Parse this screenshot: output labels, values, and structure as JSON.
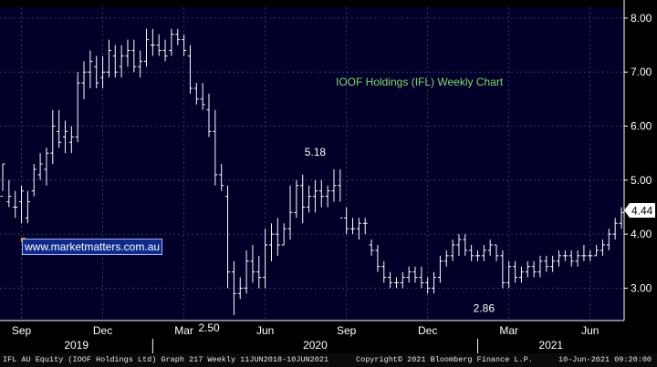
{
  "chart_data": {
    "type": "bar",
    "style": "ohlc-weekly",
    "title": "IOOF Holdings (IFL) Weekly Chart",
    "ylim": [
      2.4,
      8.2
    ],
    "yticks": [
      "3.00",
      "4.00",
      "5.00",
      "6.00",
      "7.00",
      "8.00"
    ],
    "ytick_values": [
      3,
      4,
      5,
      6,
      7,
      8
    ],
    "months": [
      "Sep",
      "Dec",
      "Mar",
      "Jun",
      "Sep",
      "Dec",
      "Mar",
      "Jun"
    ],
    "years": [
      "2019",
      "2020",
      "2021"
    ],
    "last_price": "4.44",
    "annotations": [
      {
        "label": "5.18",
        "x_week": 50,
        "value": 5.18,
        "pos": "above"
      },
      {
        "label": "2.50",
        "x_week": 33,
        "value": 2.5,
        "pos": "below"
      },
      {
        "label": "2.86",
        "x_week": 77,
        "value": 2.86,
        "pos": "below"
      }
    ],
    "weeks": [
      [
        4.7,
        5.3,
        4.8,
        5.3
      ],
      [
        4.6,
        5.0,
        4.5,
        4.7
      ],
      [
        4.5,
        4.8,
        4.3,
        4.5
      ],
      [
        4.6,
        4.9,
        4.2,
        4.8
      ],
      [
        4.3,
        4.8,
        4.2,
        4.6
      ],
      [
        4.8,
        5.3,
        4.7,
        5.2
      ],
      [
        5.1,
        5.5,
        5.0,
        5.3
      ],
      [
        5.2,
        5.6,
        4.9,
        5.5
      ],
      [
        5.5,
        6.3,
        5.3,
        6.0
      ],
      [
        5.9,
        6.3,
        5.6,
        5.7
      ],
      [
        5.8,
        6.1,
        5.5,
        5.9
      ],
      [
        5.7,
        6.0,
        5.5,
        5.8
      ],
      [
        5.8,
        7.0,
        5.7,
        6.8
      ],
      [
        6.8,
        7.2,
        6.5,
        7.0
      ],
      [
        7.0,
        7.4,
        6.7,
        7.2
      ],
      [
        7.1,
        7.3,
        6.7,
        6.8
      ],
      [
        6.9,
        7.3,
        6.7,
        7.0
      ],
      [
        7.0,
        7.6,
        6.9,
        7.4
      ],
      [
        7.3,
        7.5,
        6.9,
        7.0
      ],
      [
        7.1,
        7.5,
        6.9,
        7.3
      ],
      [
        7.3,
        7.6,
        7.1,
        7.4
      ],
      [
        7.4,
        7.6,
        7.0,
        7.1
      ],
      [
        7.1,
        7.4,
        6.9,
        7.2
      ],
      [
        7.2,
        7.8,
        7.1,
        7.6
      ],
      [
        7.5,
        7.8,
        7.3,
        7.5
      ],
      [
        7.5,
        7.7,
        7.3,
        7.4
      ],
      [
        7.4,
        7.6,
        7.2,
        7.3
      ],
      [
        7.4,
        7.8,
        7.3,
        7.7
      ],
      [
        7.7,
        7.8,
        7.5,
        7.6
      ],
      [
        7.6,
        7.7,
        7.3,
        7.4
      ],
      [
        7.3,
        7.5,
        6.6,
        6.7
      ],
      [
        6.7,
        6.8,
        6.4,
        6.5
      ],
      [
        6.5,
        6.8,
        6.3,
        6.4
      ],
      [
        6.3,
        6.6,
        5.8,
        5.9
      ],
      [
        5.9,
        6.3,
        4.9,
        5.1
      ],
      [
        5.1,
        5.3,
        4.8,
        4.9
      ],
      [
        4.7,
        4.9,
        3.0,
        3.3
      ],
      [
        3.3,
        3.5,
        2.5,
        2.9
      ],
      [
        2.9,
        3.2,
        2.8,
        3.0
      ],
      [
        3.0,
        3.7,
        2.9,
        3.5
      ],
      [
        3.5,
        3.8,
        3.1,
        3.3
      ],
      [
        3.3,
        3.6,
        3.0,
        3.2
      ],
      [
        3.2,
        4.1,
        3.0,
        3.8
      ],
      [
        3.8,
        4.2,
        3.5,
        4.0
      ],
      [
        4.0,
        4.3,
        3.6,
        3.8
      ],
      [
        3.8,
        4.2,
        3.8,
        4.1
      ],
      [
        4.1,
        4.9,
        3.9,
        4.4
      ],
      [
        4.4,
        5.0,
        4.3,
        4.9
      ],
      [
        4.9,
        5.1,
        4.2,
        4.5
      ],
      [
        4.5,
        4.9,
        4.4,
        4.7
      ],
      [
        4.7,
        5.0,
        4.4,
        4.8
      ],
      [
        4.8,
        5.0,
        4.5,
        4.7
      ],
      [
        4.7,
        4.9,
        4.5,
        4.8
      ],
      [
        4.8,
        5.2,
        4.6,
        4.9
      ],
      [
        4.9,
        5.2,
        4.6,
        4.3
      ],
      [
        4.3,
        4.5,
        4.0,
        4.1
      ],
      [
        4.1,
        4.3,
        4.0,
        4.1
      ],
      [
        4.1,
        4.3,
        3.9,
        4.2
      ],
      [
        4.2,
        4.3,
        4.0,
        4.2
      ],
      [
        3.8,
        3.9,
        3.6,
        3.7
      ],
      [
        3.7,
        3.8,
        3.3,
        3.4
      ],
      [
        3.4,
        3.5,
        3.1,
        3.2
      ],
      [
        3.2,
        3.3,
        3.0,
        3.1
      ],
      [
        3.1,
        3.2,
        3.0,
        3.1
      ],
      [
        3.1,
        3.3,
        3.0,
        3.2
      ],
      [
        3.2,
        3.4,
        3.1,
        3.3
      ],
      [
        3.3,
        3.4,
        3.1,
        3.2
      ],
      [
        3.2,
        3.4,
        3.0,
        3.1
      ],
      [
        3.1,
        3.2,
        2.9,
        3.0
      ],
      [
        3.0,
        3.3,
        2.9,
        3.2
      ],
      [
        3.2,
        3.6,
        3.1,
        3.5
      ],
      [
        3.5,
        3.7,
        3.4,
        3.6
      ],
      [
        3.6,
        3.9,
        3.5,
        3.8
      ],
      [
        3.8,
        4.0,
        3.6,
        3.9
      ],
      [
        3.9,
        4.0,
        3.6,
        3.7
      ],
      [
        3.7,
        3.8,
        3.5,
        3.6
      ],
      [
        3.6,
        3.7,
        3.5,
        3.6
      ],
      [
        3.6,
        3.8,
        3.5,
        3.7
      ],
      [
        3.7,
        3.9,
        3.6,
        3.8
      ],
      [
        3.8,
        3.8,
        3.5,
        3.6
      ],
      [
        3.6,
        3.7,
        3.0,
        3.1
      ],
      [
        3.1,
        3.5,
        3.0,
        3.4
      ],
      [
        3.4,
        3.5,
        3.1,
        3.2
      ],
      [
        3.2,
        3.4,
        3.1,
        3.3
      ],
      [
        3.3,
        3.5,
        3.2,
        3.4
      ],
      [
        3.4,
        3.5,
        3.2,
        3.3
      ],
      [
        3.3,
        3.6,
        3.2,
        3.5
      ],
      [
        3.5,
        3.6,
        3.3,
        3.4
      ],
      [
        3.4,
        3.6,
        3.3,
        3.5
      ],
      [
        3.5,
        3.7,
        3.4,
        3.6
      ],
      [
        3.6,
        3.7,
        3.5,
        3.6
      ],
      [
        3.6,
        3.7,
        3.4,
        3.5
      ],
      [
        3.5,
        3.7,
        3.4,
        3.6
      ],
      [
        3.6,
        3.8,
        3.5,
        3.6
      ],
      [
        3.6,
        3.7,
        3.5,
        3.6
      ],
      [
        3.6,
        3.8,
        3.6,
        3.7
      ],
      [
        3.7,
        3.9,
        3.6,
        3.8
      ],
      [
        3.8,
        4.1,
        3.7,
        4.0
      ],
      [
        4.0,
        4.3,
        3.9,
        4.2
      ],
      [
        4.2,
        4.5,
        4.1,
        4.4
      ]
    ]
  },
  "watermark": "www.marketmatters.com.au",
  "footer": {
    "left": "IFL AU Equity (IOOF Holdings Ltd) Graph 217  Weekly 11JUN2018-10JUN2021",
    "center": "Copyright© 2021 Bloomberg Finance L.P.",
    "right": "10-Jun-2021 09:20:00"
  },
  "colors": {
    "background": "#000000",
    "plot_bg": "#000028",
    "bars": "#ffffff",
    "grid": "#3a4a7a",
    "title": "#7ddc6a",
    "axis_text": "#ffffff",
    "price_box": "#ffffff"
  }
}
